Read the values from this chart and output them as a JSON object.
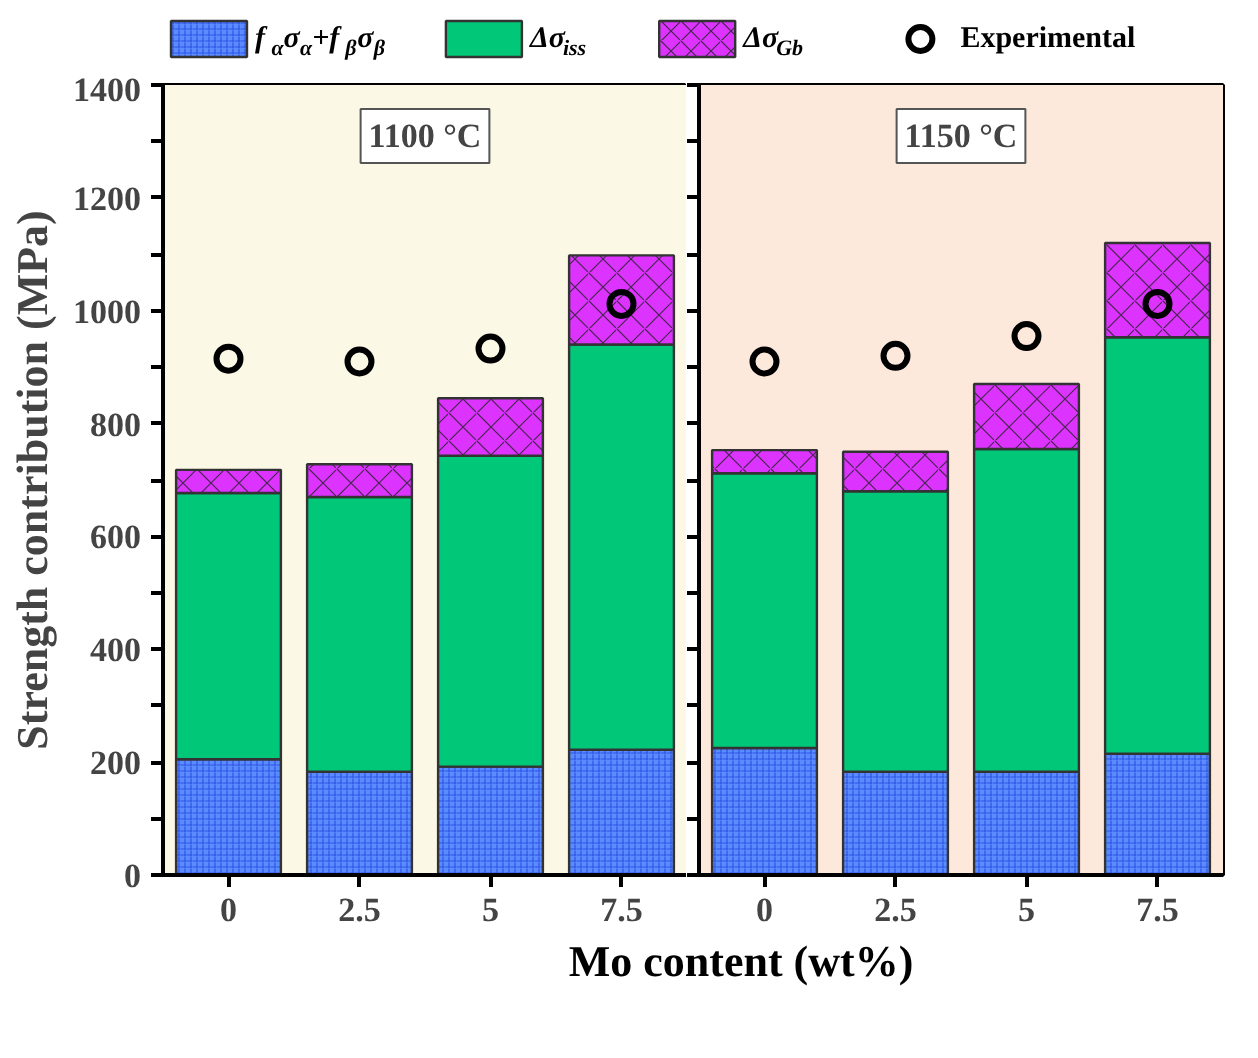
{
  "chart_data": [
    {
      "type": "bar",
      "stacked": true,
      "xlabel": "Mo content (wt%)",
      "ylabel": "Strength contribution (MPa)",
      "categories": [
        "0",
        "2.5",
        "5",
        "7.5"
      ],
      "ylim": [
        0,
        1400
      ],
      "yticks": [
        0,
        {
          "value": 100,
          "label": null
        },
        200,
        {
          "value": 300,
          "label": null
        },
        400,
        {
          "value": 500,
          "label": null
        },
        600,
        {
          "value": 700,
          "label": null
        },
        800,
        {
          "value": 900,
          "label": null
        },
        1000,
        {
          "value": 1100,
          "label": null
        },
        1200,
        {
          "value": 1300,
          "label": null
        },
        1400
      ],
      "series": [
        {
          "name": "f$_{α}$σ$_{α}$+f$_{β}$σ$_{β}$",
          "color": "#5b8cff",
          "values": [
            205,
            183,
            192,
            222
          ]
        },
        {
          "name": "Δσ$_{iss}$",
          "color": "#00c878",
          "values": [
            472,
            487,
            551,
            718
          ]
        },
        {
          "name": "Δσ$_{Gb}$",
          "color": "#dd33ff",
          "values": [
            41,
            58,
            102,
            158
          ]
        },
        {
          "name": "Experimental",
          "type": "scatter",
          "color": "#000000",
          "x": [
            "0",
            "2.5",
            "5",
            "7.5"
          ],
          "values": [
            915,
            910,
            933,
            1012
          ]
        }
      ],
      "bands": [
        {
          "axis": "x",
          "from": "0",
          "to": "7.5",
          "label": "1100 °C",
          "color": "#fbf8e6"
        }
      ],
      "legend": "top",
      "marker": "circle"
    },
    {
      "type": "bar",
      "stacked": true,
      "categories": [
        "0",
        "2.5",
        "5",
        "7.5"
      ],
      "ylim": [
        0,
        1400
      ],
      "series": [
        {
          "color": "#5b8cff",
          "values": [
            225,
            183,
            183,
            215
          ]
        },
        {
          "color": "#00c878",
          "values": [
            487,
            497,
            572,
            738
          ]
        },
        {
          "color": "#dd33ff",
          "values": [
            41,
            70,
            115,
            167
          ]
        },
        {
          "type": "scatter",
          "color": "#000000",
          "x": [
            "0",
            "2.5",
            "5",
            "7.5"
          ],
          "values": [
            910,
            920,
            955,
            1012
          ]
        }
      ],
      "bands": [
        {
          "axis": "x",
          "from": "0",
          "to": "7.5",
          "label": "1150 °C",
          "color": "#fde9dc"
        }
      ],
      "tick_labels": "x",
      "marker": "circle"
    }
  ]
}
